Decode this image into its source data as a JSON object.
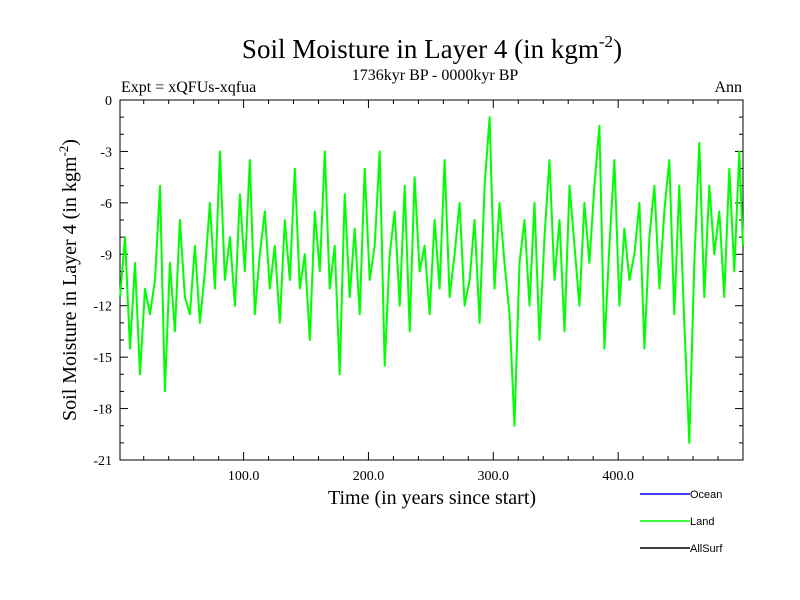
{
  "chart_data": {
    "type": "line",
    "title": "Soil Moisture in Layer 4 (in kgm",
    "title_sup": "-2",
    "title_close": ")",
    "subtitle_left": "Expt = xQFUs-xqfua",
    "subtitle_center": "1736kyr BP - 0000kyr BP",
    "subtitle_right": "Ann",
    "xlabel": "Time (in years since start)",
    "ylabel": "Soil Moisture in Layer 4 (in kgm",
    "ylabel_sup": "-2",
    "ylabel_close": ")",
    "xlim": [
      1,
      500
    ],
    "ylim": [
      -21,
      0
    ],
    "x_ticks": [
      100,
      200,
      300,
      400
    ],
    "x_tick_labels": [
      "100.0",
      "200.0",
      "300.0",
      "400.0"
    ],
    "y_ticks": [
      0,
      -3,
      -6,
      -9,
      -12,
      -15,
      -18,
      -21
    ],
    "y_tick_labels": [
      "0",
      "-3",
      "-6",
      "-9",
      "-12",
      "-15",
      "-18",
      "-21"
    ],
    "legend": [
      {
        "name": "Ocean",
        "color": "#0000ff"
      },
      {
        "name": "Land",
        "color": "#00ff00"
      },
      {
        "name": "AllSurf",
        "color": "#000000"
      }
    ],
    "series": [
      {
        "name": "Land",
        "color": "#00ff00",
        "x": [
          1,
          5,
          9,
          13,
          17,
          21,
          25,
          29,
          33,
          37,
          41,
          45,
          49,
          53,
          57,
          61,
          65,
          69,
          73,
          77,
          81,
          85,
          89,
          93,
          97,
          101,
          105,
          109,
          113,
          117,
          121,
          125,
          129,
          133,
          137,
          141,
          145,
          149,
          153,
          157,
          161,
          165,
          169,
          173,
          177,
          181,
          185,
          189,
          193,
          197,
          201,
          205,
          209,
          213,
          217,
          221,
          225,
          229,
          233,
          237,
          241,
          245,
          249,
          253,
          257,
          261,
          265,
          269,
          273,
          277,
          281,
          285,
          289,
          293,
          297,
          301,
          305,
          309,
          313,
          317,
          321,
          325,
          329,
          333,
          337,
          341,
          345,
          349,
          353,
          357,
          361,
          365,
          369,
          373,
          377,
          381,
          385,
          389,
          393,
          397,
          401,
          405,
          409,
          413,
          417,
          421,
          425,
          429,
          433,
          437,
          441,
          445,
          449,
          453,
          457,
          461,
          465,
          469,
          473,
          477,
          481,
          485,
          489,
          493,
          497,
          500
        ],
        "values": [
          -11.5,
          -8.0,
          -14.5,
          -9.5,
          -16.0,
          -11.0,
          -12.5,
          -10.5,
          -5.0,
          -17.0,
          -9.5,
          -13.5,
          -7.0,
          -11.5,
          -12.5,
          -8.5,
          -13.0,
          -10.0,
          -6.0,
          -11.0,
          -3.0,
          -10.5,
          -8.0,
          -12.0,
          -5.5,
          -10.0,
          -3.5,
          -12.5,
          -9.0,
          -6.5,
          -11.0,
          -8.5,
          -13.0,
          -7.0,
          -10.5,
          -4.0,
          -11.0,
          -9.0,
          -14.0,
          -6.5,
          -10.0,
          -3.0,
          -11.0,
          -8.5,
          -16.0,
          -5.5,
          -11.5,
          -7.5,
          -12.5,
          -4.0,
          -10.5,
          -8.5,
          -3.0,
          -15.5,
          -9.0,
          -6.5,
          -12.0,
          -5.0,
          -13.5,
          -4.5,
          -10.0,
          -8.5,
          -12.5,
          -7.0,
          -11.0,
          -3.5,
          -11.5,
          -9.0,
          -6.0,
          -12.0,
          -10.5,
          -7.0,
          -13.0,
          -5.0,
          -1.0,
          -11.0,
          -6.0,
          -9.5,
          -12.5,
          -19.0,
          -9.5,
          -7.0,
          -12.0,
          -6.0,
          -14.0,
          -8.0,
          -3.5,
          -10.5,
          -7.0,
          -13.5,
          -5.0,
          -8.5,
          -12.0,
          -6.0,
          -9.5,
          -5.0,
          -1.5,
          -14.5,
          -8.5,
          -3.5,
          -12.0,
          -7.5,
          -10.5,
          -9.0,
          -6.0,
          -14.5,
          -8.0,
          -5.0,
          -11.0,
          -6.5,
          -3.5,
          -12.5,
          -5.0,
          -13.0,
          -20.0,
          -9.5,
          -2.5,
          -11.5,
          -5.0,
          -9.0,
          -6.5,
          -11.5,
          -4.0,
          -10.0,
          -3.0,
          -8.5
        ]
      }
    ]
  }
}
